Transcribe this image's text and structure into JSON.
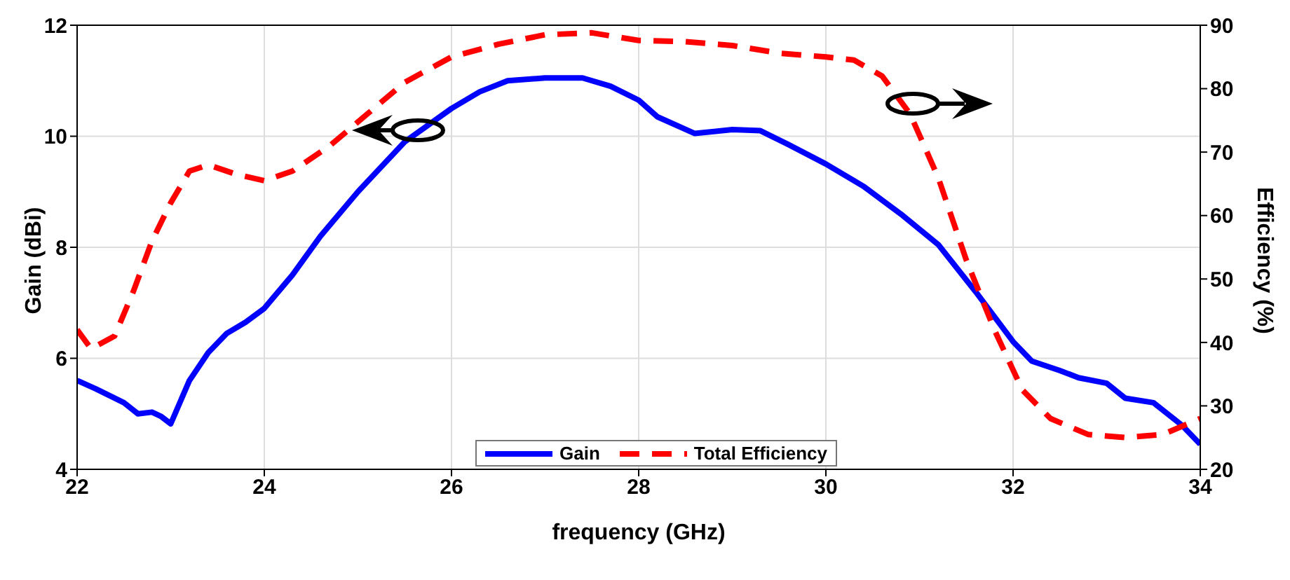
{
  "chart_data": {
    "type": "line",
    "xlabel": "frequency (GHz)",
    "ylabel": "Gain (dBi)",
    "y2label": "Efficiency (%)",
    "xlim": [
      22,
      34
    ],
    "xticks": [
      22,
      24,
      26,
      28,
      30,
      32,
      34
    ],
    "ylim": [
      4,
      12
    ],
    "yticks": [
      4,
      6,
      8,
      10,
      12
    ],
    "y2lim": [
      20,
      90
    ],
    "y2ticks": [
      20,
      30,
      40,
      50,
      60,
      70,
      80,
      90
    ],
    "grid": true,
    "legend": "bottom",
    "marker": "none",
    "series": [
      {
        "name": "Gain",
        "color": "#0000ff",
        "line_style": "solid",
        "x": [
          22,
          22.2,
          22.5,
          22.65,
          22.8,
          22.9,
          23.0,
          23.2,
          23.4,
          23.6,
          23.8,
          24.0,
          24.3,
          24.6,
          25.0,
          25.5,
          26.0,
          26.3,
          26.6,
          27.0,
          27.4,
          27.7,
          28.0,
          28.2,
          28.6,
          29.0,
          29.3,
          29.6,
          30.0,
          30.4,
          30.8,
          31.2,
          31.6,
          32.0,
          32.2,
          32.5,
          32.7,
          33.0,
          33.2,
          33.5,
          33.8,
          34.0
        ],
        "values": [
          5.6,
          5.45,
          5.2,
          5.0,
          5.03,
          4.95,
          4.82,
          5.6,
          6.1,
          6.45,
          6.65,
          6.9,
          7.5,
          8.2,
          9.0,
          9.9,
          10.5,
          10.8,
          11.0,
          11.05,
          11.05,
          10.9,
          10.65,
          10.35,
          10.05,
          10.12,
          10.1,
          9.85,
          9.5,
          9.1,
          8.6,
          8.05,
          7.2,
          6.3,
          5.95,
          5.78,
          5.65,
          5.55,
          5.28,
          5.2,
          4.8,
          4.45
        ]
      },
      {
        "name": "Total Efficiency",
        "color": "#ff0000",
        "line_style": "dashed",
        "axis": "y2",
        "x": [
          22,
          22.15,
          22.4,
          22.6,
          22.8,
          23.0,
          23.2,
          23.4,
          23.7,
          24.0,
          24.3,
          24.7,
          25.1,
          25.5,
          26.0,
          26.5,
          27.0,
          27.5,
          28.0,
          28.5,
          29.0,
          29.5,
          30.0,
          30.3,
          30.6,
          30.9,
          31.2,
          31.5,
          31.8,
          32.1,
          32.4,
          32.8,
          33.2,
          33.6,
          34.0
        ],
        "values": [
          42,
          39,
          41,
          48,
          56,
          62,
          67,
          68,
          66.5,
          65.5,
          67,
          71,
          76,
          81,
          85,
          87,
          88.5,
          88.8,
          87.6,
          87.4,
          86.8,
          85.6,
          85,
          84.5,
          82,
          76,
          66,
          53,
          42,
          32.5,
          28,
          25.5,
          25,
          25.5,
          28
        ]
      }
    ]
  }
}
